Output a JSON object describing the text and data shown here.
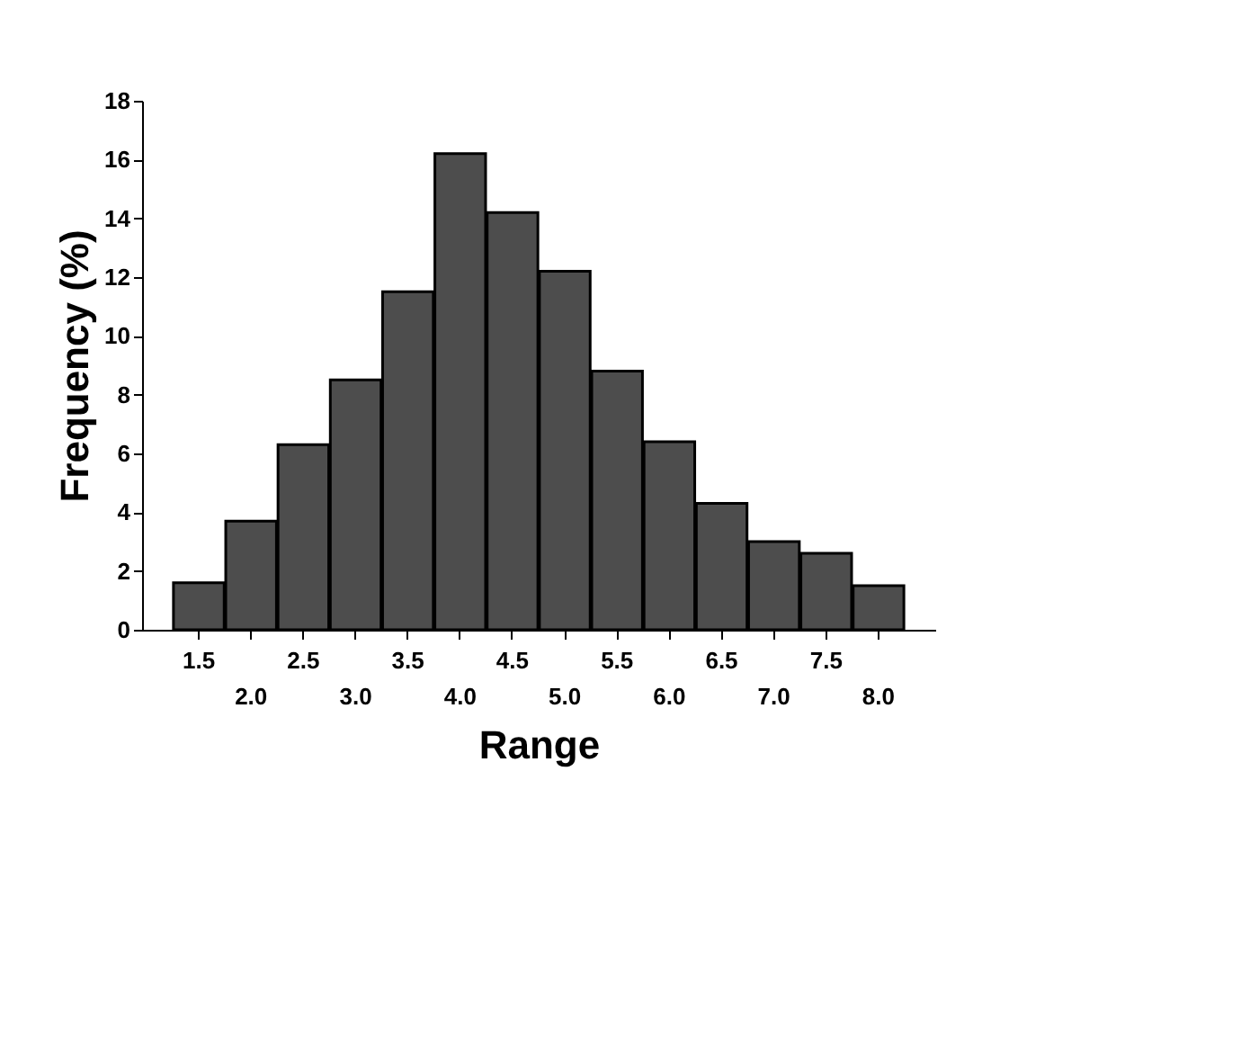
{
  "chart_data": {
    "type": "bar",
    "xlabel": "Range",
    "ylabel": "Frequency (%)",
    "categories": [
      "1.5",
      "2.0",
      "2.5",
      "3.0",
      "3.5",
      "4.0",
      "4.5",
      "5.0",
      "5.5",
      "6.0",
      "6.5",
      "7.0",
      "7.5",
      "8.0"
    ],
    "values": [
      1.6,
      3.7,
      6.3,
      8.5,
      11.5,
      16.2,
      14.2,
      12.2,
      8.8,
      6.4,
      4.3,
      3.0,
      2.6,
      1.5
    ],
    "color": "#4d4d4d",
    "ylim": [
      0,
      18
    ],
    "yticks": [
      0,
      2,
      4,
      6,
      8,
      10,
      12,
      14,
      16,
      18
    ],
    "grid": false
  }
}
